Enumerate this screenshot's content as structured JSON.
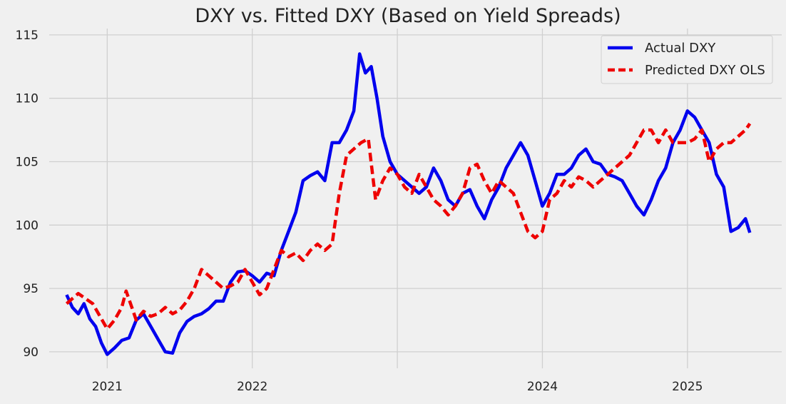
{
  "chart_data": {
    "type": "line",
    "title": "DXY vs. Fitted DXY (Based on Yield Spreads)",
    "xlabel": "",
    "ylabel": "",
    "xlim": [
      2020.6,
      2025.65
    ],
    "ylim": [
      88.7,
      115.5
    ],
    "grid": true,
    "legend_position": "top-right",
    "x_ticks": [
      {
        "value": 2021.0,
        "label": "2021"
      },
      {
        "value": 2022.0,
        "label": "2022"
      },
      {
        "value": 2023.0,
        "label": ""
      },
      {
        "value": 2024.0,
        "label": "2024"
      },
      {
        "value": 2025.0,
        "label": "2025"
      }
    ],
    "y_ticks": [
      {
        "value": 90,
        "label": "90"
      },
      {
        "value": 95,
        "label": "95"
      },
      {
        "value": 100,
        "label": "100"
      },
      {
        "value": 105,
        "label": "105"
      },
      {
        "value": 110,
        "label": "110"
      },
      {
        "value": 115,
        "label": "115"
      }
    ],
    "series": [
      {
        "name": "Actual DXY",
        "color": "#0000ee",
        "style": "solid",
        "points": [
          [
            2020.72,
            94.5
          ],
          [
            2020.76,
            93.5
          ],
          [
            2020.8,
            93.0
          ],
          [
            2020.84,
            93.8
          ],
          [
            2020.88,
            92.6
          ],
          [
            2020.92,
            92.0
          ],
          [
            2020.96,
            90.7
          ],
          [
            2021.0,
            89.8
          ],
          [
            2021.05,
            90.3
          ],
          [
            2021.1,
            90.9
          ],
          [
            2021.15,
            91.1
          ],
          [
            2021.2,
            92.5
          ],
          [
            2021.25,
            93.0
          ],
          [
            2021.3,
            92.0
          ],
          [
            2021.35,
            91.0
          ],
          [
            2021.4,
            90.0
          ],
          [
            2021.45,
            89.9
          ],
          [
            2021.5,
            91.5
          ],
          [
            2021.55,
            92.4
          ],
          [
            2021.6,
            92.8
          ],
          [
            2021.65,
            93.0
          ],
          [
            2021.7,
            93.4
          ],
          [
            2021.75,
            94.0
          ],
          [
            2021.8,
            94.0
          ],
          [
            2021.85,
            95.5
          ],
          [
            2021.9,
            96.3
          ],
          [
            2021.95,
            96.4
          ],
          [
            2022.0,
            96.0
          ],
          [
            2022.05,
            95.5
          ],
          [
            2022.1,
            96.2
          ],
          [
            2022.15,
            96.0
          ],
          [
            2022.2,
            98.0
          ],
          [
            2022.25,
            99.5
          ],
          [
            2022.3,
            101.0
          ],
          [
            2022.35,
            103.5
          ],
          [
            2022.4,
            103.9
          ],
          [
            2022.45,
            104.2
          ],
          [
            2022.5,
            103.5
          ],
          [
            2022.55,
            106.5
          ],
          [
            2022.6,
            106.5
          ],
          [
            2022.65,
            107.5
          ],
          [
            2022.7,
            109.0
          ],
          [
            2022.74,
            113.5
          ],
          [
            2022.78,
            112.0
          ],
          [
            2022.82,
            112.5
          ],
          [
            2022.86,
            110.0
          ],
          [
            2022.9,
            107.0
          ],
          [
            2022.95,
            105.0
          ],
          [
            2023.0,
            104.0
          ],
          [
            2023.05,
            103.5
          ],
          [
            2023.1,
            103.0
          ],
          [
            2023.15,
            102.5
          ],
          [
            2023.2,
            103.0
          ],
          [
            2023.25,
            104.5
          ],
          [
            2023.3,
            103.5
          ],
          [
            2023.35,
            102.0
          ],
          [
            2023.4,
            101.5
          ],
          [
            2023.45,
            102.5
          ],
          [
            2023.5,
            102.8
          ],
          [
            2023.55,
            101.5
          ],
          [
            2023.6,
            100.5
          ],
          [
            2023.65,
            102.0
          ],
          [
            2023.7,
            103.0
          ],
          [
            2023.75,
            104.5
          ],
          [
            2023.8,
            105.5
          ],
          [
            2023.85,
            106.5
          ],
          [
            2023.9,
            105.5
          ],
          [
            2023.95,
            103.5
          ],
          [
            2024.0,
            101.5
          ],
          [
            2024.05,
            102.5
          ],
          [
            2024.1,
            104.0
          ],
          [
            2024.15,
            104.0
          ],
          [
            2024.2,
            104.5
          ],
          [
            2024.25,
            105.5
          ],
          [
            2024.3,
            106.0
          ],
          [
            2024.35,
            105.0
          ],
          [
            2024.4,
            104.8
          ],
          [
            2024.45,
            104.0
          ],
          [
            2024.5,
            103.8
          ],
          [
            2024.55,
            103.5
          ],
          [
            2024.6,
            102.5
          ],
          [
            2024.65,
            101.5
          ],
          [
            2024.7,
            100.8
          ],
          [
            2024.75,
            102.0
          ],
          [
            2024.8,
            103.5
          ],
          [
            2024.85,
            104.5
          ],
          [
            2024.9,
            106.5
          ],
          [
            2024.95,
            107.5
          ],
          [
            2025.0,
            109.0
          ],
          [
            2025.05,
            108.5
          ],
          [
            2025.1,
            107.5
          ],
          [
            2025.15,
            106.5
          ],
          [
            2025.2,
            104.0
          ],
          [
            2025.25,
            103.0
          ],
          [
            2025.3,
            99.5
          ],
          [
            2025.35,
            99.8
          ],
          [
            2025.4,
            100.5
          ],
          [
            2025.43,
            99.4
          ]
        ]
      },
      {
        "name": "Predicted DXY OLS",
        "color": "#ee0000",
        "style": "dashed",
        "points": [
          [
            2020.72,
            93.8
          ],
          [
            2020.76,
            94.2
          ],
          [
            2020.8,
            94.6
          ],
          [
            2020.85,
            94.2
          ],
          [
            2020.9,
            93.8
          ],
          [
            2020.95,
            92.8
          ],
          [
            2021.0,
            91.8
          ],
          [
            2021.05,
            92.5
          ],
          [
            2021.1,
            93.5
          ],
          [
            2021.13,
            94.8
          ],
          [
            2021.17,
            93.5
          ],
          [
            2021.2,
            92.5
          ],
          [
            2021.25,
            93.2
          ],
          [
            2021.3,
            92.8
          ],
          [
            2021.35,
            93.0
          ],
          [
            2021.4,
            93.5
          ],
          [
            2021.45,
            93.0
          ],
          [
            2021.5,
            93.3
          ],
          [
            2021.55,
            94.0
          ],
          [
            2021.6,
            95.0
          ],
          [
            2021.65,
            96.5
          ],
          [
            2021.7,
            96.0
          ],
          [
            2021.75,
            95.5
          ],
          [
            2021.8,
            95.0
          ],
          [
            2021.85,
            95.2
          ],
          [
            2021.9,
            95.5
          ],
          [
            2021.95,
            96.5
          ],
          [
            2022.0,
            95.5
          ],
          [
            2022.05,
            94.5
          ],
          [
            2022.1,
            95.0
          ],
          [
            2022.15,
            96.5
          ],
          [
            2022.2,
            98.0
          ],
          [
            2022.25,
            97.5
          ],
          [
            2022.3,
            97.8
          ],
          [
            2022.35,
            97.2
          ],
          [
            2022.4,
            98.0
          ],
          [
            2022.45,
            98.5
          ],
          [
            2022.5,
            98.0
          ],
          [
            2022.55,
            98.5
          ],
          [
            2022.6,
            102.5
          ],
          [
            2022.65,
            105.5
          ],
          [
            2022.7,
            106.0
          ],
          [
            2022.75,
            106.5
          ],
          [
            2022.8,
            106.8
          ],
          [
            2022.85,
            102.0
          ],
          [
            2022.9,
            103.5
          ],
          [
            2022.95,
            104.5
          ],
          [
            2023.0,
            104.0
          ],
          [
            2023.05,
            103.0
          ],
          [
            2023.1,
            102.5
          ],
          [
            2023.15,
            104.0
          ],
          [
            2023.2,
            103.0
          ],
          [
            2023.25,
            102.0
          ],
          [
            2023.3,
            101.5
          ],
          [
            2023.35,
            100.8
          ],
          [
            2023.4,
            101.5
          ],
          [
            2023.45,
            102.5
          ],
          [
            2023.5,
            104.5
          ],
          [
            2023.55,
            104.8
          ],
          [
            2023.6,
            103.5
          ],
          [
            2023.65,
            102.5
          ],
          [
            2023.7,
            103.5
          ],
          [
            2023.75,
            103.0
          ],
          [
            2023.8,
            102.5
          ],
          [
            2023.85,
            101.0
          ],
          [
            2023.9,
            99.5
          ],
          [
            2023.95,
            99.0
          ],
          [
            2024.0,
            99.5
          ],
          [
            2024.05,
            102.0
          ],
          [
            2024.1,
            102.5
          ],
          [
            2024.15,
            103.5
          ],
          [
            2024.2,
            103.0
          ],
          [
            2024.25,
            103.8
          ],
          [
            2024.3,
            103.5
          ],
          [
            2024.35,
            103.0
          ],
          [
            2024.4,
            103.5
          ],
          [
            2024.45,
            104.0
          ],
          [
            2024.5,
            104.5
          ],
          [
            2024.55,
            105.0
          ],
          [
            2024.6,
            105.5
          ],
          [
            2024.65,
            106.5
          ],
          [
            2024.7,
            107.5
          ],
          [
            2024.75,
            107.5
          ],
          [
            2024.8,
            106.5
          ],
          [
            2024.85,
            107.5
          ],
          [
            2024.9,
            106.5
          ],
          [
            2024.95,
            106.5
          ],
          [
            2025.0,
            106.5
          ],
          [
            2025.05,
            106.8
          ],
          [
            2025.1,
            107.5
          ],
          [
            2025.15,
            105.0
          ],
          [
            2025.2,
            106.0
          ],
          [
            2025.25,
            106.5
          ],
          [
            2025.3,
            106.5
          ],
          [
            2025.35,
            107.0
          ],
          [
            2025.4,
            107.5
          ],
          [
            2025.43,
            108.0
          ]
        ]
      }
    ]
  }
}
